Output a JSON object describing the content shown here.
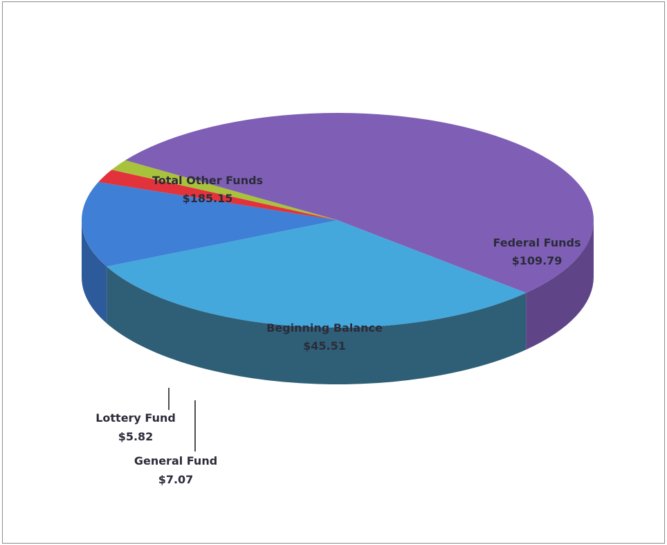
{
  "chart_data": {
    "type": "pie",
    "style": "3d",
    "title": "",
    "slices": [
      {
        "name": "Total Other Funds",
        "value": 185.15,
        "value_label": "$185.15",
        "color": "#7f5fb5",
        "side_color": "#5f4588"
      },
      {
        "name": "Federal Funds",
        "value": 109.79,
        "value_label": "$109.79",
        "color": "#45a8dc",
        "side_color": "#2f5f76"
      },
      {
        "name": "Beginning Balance",
        "value": 45.51,
        "value_label": "$45.51",
        "color": "#3f7fd6",
        "side_color": "#2d5a9a"
      },
      {
        "name": "General Fund",
        "value": 7.07,
        "value_label": "$7.07",
        "color": "#e2333d",
        "side_color": "#b0242c"
      },
      {
        "name": "Lottery Fund",
        "value": 5.82,
        "value_label": "$5.82",
        "color": "#a9c23c",
        "side_color": "#8aa02c"
      }
    ],
    "labels_with_leader_lines": [
      "Lottery Fund",
      "General Fund"
    ]
  }
}
